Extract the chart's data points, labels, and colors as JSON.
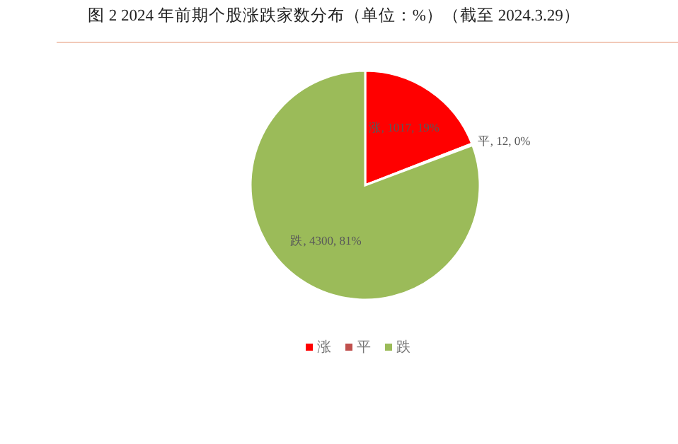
{
  "chart_data": {
    "type": "pie",
    "title": "图 2 2024 年前期个股涨跌家数分布（单位：%）（截至 2024.3.29）",
    "categories": [
      "涨",
      "平",
      "跌"
    ],
    "values": [
      1017,
      12,
      4300
    ],
    "colors": [
      "#ff0000",
      "#c0504d",
      "#9bbb59"
    ],
    "value_labels": [
      "涨, 1017, 19%",
      "平, 12, 0%",
      "跌, 4300, 81%"
    ],
    "legend": "bottom"
  }
}
